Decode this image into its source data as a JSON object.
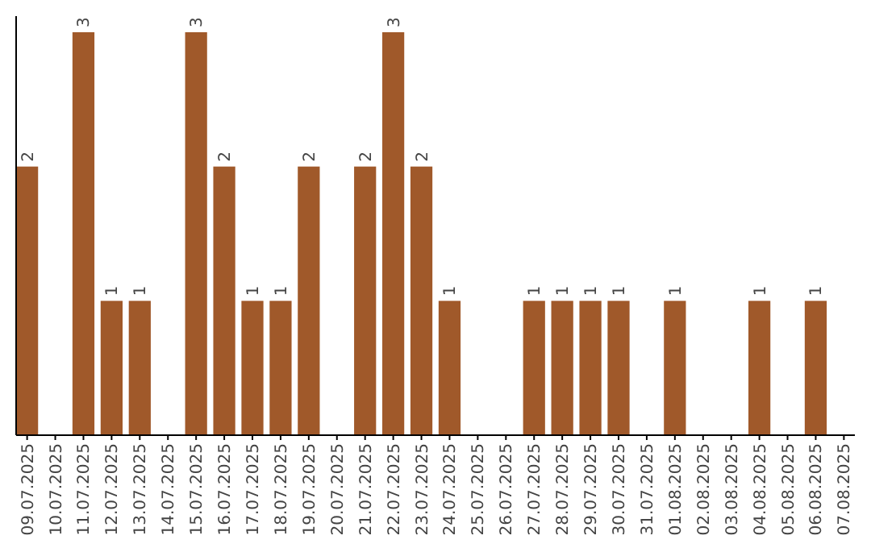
{
  "chart_data": {
    "type": "bar",
    "categories": [
      "09.07.2025",
      "10.07.2025",
      "11.07.2025",
      "12.07.2025",
      "13.07.2025",
      "14.07.2025",
      "15.07.2025",
      "16.07.2025",
      "17.07.2025",
      "18.07.2025",
      "19.07.2025",
      "20.07.2025",
      "21.07.2025",
      "22.07.2025",
      "23.07.2025",
      "24.07.2025",
      "25.07.2025",
      "26.07.2025",
      "27.07.2025",
      "28.07.2025",
      "29.07.2025",
      "30.07.2025",
      "31.07.2025",
      "01.08.2025",
      "02.08.2025",
      "03.08.2025",
      "04.08.2025",
      "05.08.2025",
      "06.08.2025",
      "07.08.2025"
    ],
    "values": [
      2,
      0,
      3,
      1,
      1,
      0,
      3,
      2,
      1,
      1,
      2,
      0,
      2,
      3,
      2,
      1,
      0,
      0,
      1,
      1,
      1,
      1,
      0,
      1,
      0,
      0,
      1,
      0,
      1,
      0
    ],
    "value_labels": [
      "2",
      null,
      "3",
      "1",
      "1",
      null,
      "3",
      "2",
      "1",
      "1",
      "2",
      null,
      "2",
      "3",
      "2",
      "1",
      null,
      null,
      "1",
      "1",
      "1",
      "1",
      null,
      "1",
      null,
      null,
      "1",
      null,
      "1",
      null
    ],
    "color": "#a0592a",
    "ylim": [
      0,
      3.12
    ],
    "tick_labels": "x"
  }
}
